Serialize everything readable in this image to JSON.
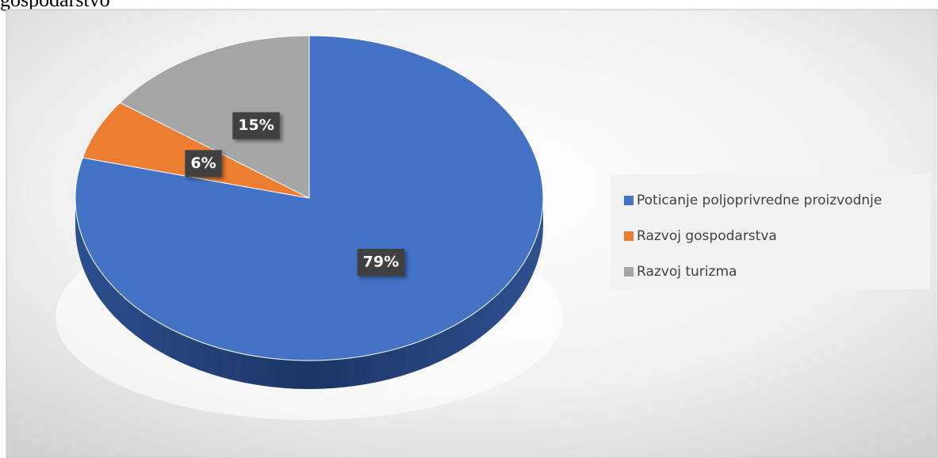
{
  "heading": "gospodarstvo",
  "chart_data": {
    "type": "pie",
    "categories": [
      "Poticanje poljoprivredne proizvodnje",
      "Razvoj gospodarstva",
      "Razvoj turizma"
    ],
    "values": [
      79,
      6,
      15
    ],
    "value_labels": [
      "79%",
      "6%",
      "15%"
    ],
    "colors": [
      "#4472c4",
      "#ed7d31",
      "#a5a5a5"
    ],
    "legend": "right"
  }
}
